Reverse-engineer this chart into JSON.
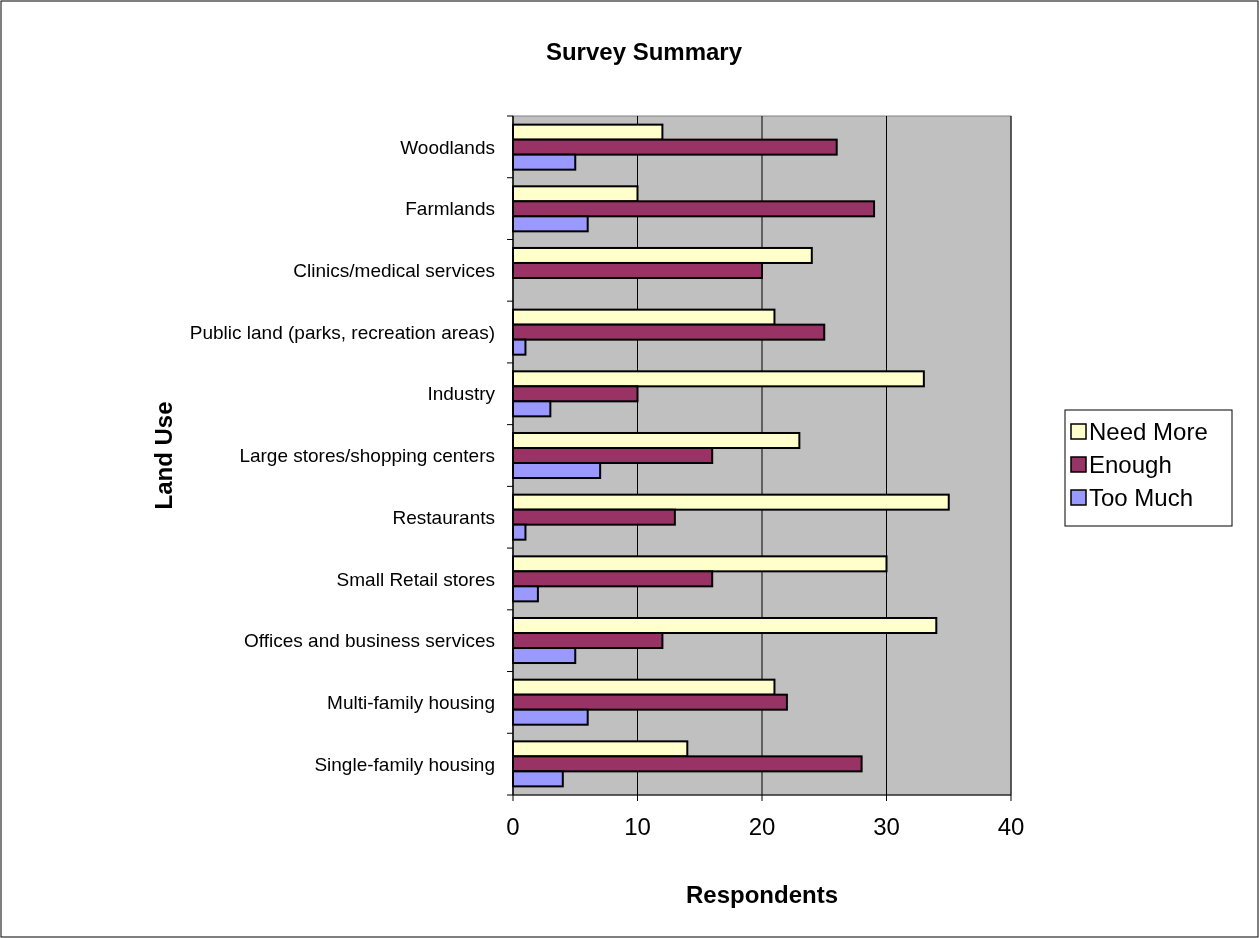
{
  "chart_data": {
    "type": "bar",
    "orientation": "horizontal",
    "title": "Survey Summary",
    "xlabel": "Respondents",
    "ylabel": "Land Use",
    "categories": [
      "Woodlands",
      "Farmlands",
      "Clinics/medical services",
      "Public land (parks, recreation areas)",
      "Industry",
      "Large stores/shopping centers",
      "Restaurants",
      "Small Retail stores",
      "Offices and business services",
      "Multi-family housing",
      "Single-family housing"
    ],
    "series": [
      {
        "name": "Need More",
        "color": "#ffffcc",
        "values": [
          12,
          10,
          24,
          21,
          33,
          23,
          35,
          30,
          34,
          21,
          14
        ]
      },
      {
        "name": "Enough",
        "color": "#993366",
        "values": [
          26,
          29,
          20,
          25,
          10,
          16,
          13,
          16,
          12,
          22,
          28
        ]
      },
      {
        "name": "Too Much",
        "color": "#9999ff",
        "values": [
          5,
          6,
          0,
          1,
          3,
          7,
          1,
          2,
          5,
          6,
          4
        ]
      }
    ],
    "xlim": [
      0,
      40
    ],
    "xticks": [
      0,
      10,
      20,
      30,
      40
    ],
    "grid": "x",
    "legend": "right"
  }
}
